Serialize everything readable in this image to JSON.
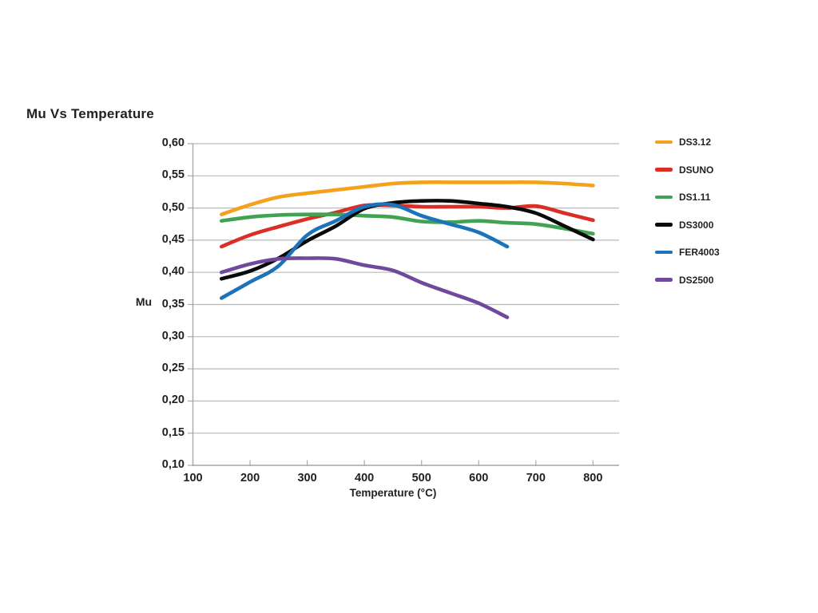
{
  "chart": {
    "title": "Mu Vs Temperature",
    "ylabel": "Mu",
    "xlabel": "Temperature (°C)"
  },
  "chart_data": {
    "type": "line",
    "title": "Mu Vs Temperature",
    "xlabel": "Temperature (°C)",
    "ylabel": "Mu",
    "xlim": [
      100,
      845
    ],
    "ylim": [
      0.1,
      0.6
    ],
    "grid": "horizontal-only",
    "legend_position": "right-outside",
    "x_ticks": [
      {
        "value": 100,
        "label": "100"
      },
      {
        "value": 200,
        "label": "200"
      },
      {
        "value": 300,
        "label": "300"
      },
      {
        "value": 400,
        "label": "400"
      },
      {
        "value": 500,
        "label": "500"
      },
      {
        "value": 600,
        "label": "600"
      },
      {
        "value": 700,
        "label": "700"
      },
      {
        "value": 800,
        "label": "800"
      }
    ],
    "y_ticks": [
      {
        "value": 0.6,
        "label": "0,60"
      },
      {
        "value": 0.55,
        "label": "0,55"
      },
      {
        "value": 0.5,
        "label": "0,50"
      },
      {
        "value": 0.45,
        "label": "0,45"
      },
      {
        "value": 0.4,
        "label": "0,40"
      },
      {
        "value": 0.35,
        "label": "0,35"
      },
      {
        "value": 0.3,
        "label": "0,30"
      },
      {
        "value": 0.25,
        "label": "0,25"
      },
      {
        "value": 0.2,
        "label": "0,20"
      },
      {
        "value": 0.15,
        "label": "0,15"
      },
      {
        "value": 0.1,
        "label": "0,10"
      }
    ],
    "series": [
      {
        "name": "DS3.12",
        "color": "#F2A21C",
        "x": [
          150,
          200,
          250,
          300,
          350,
          400,
          450,
          500,
          550,
          600,
          650,
          700,
          750,
          800
        ],
        "y": [
          0.49,
          0.505,
          0.517,
          0.523,
          0.528,
          0.533,
          0.538,
          0.54,
          0.54,
          0.54,
          0.54,
          0.54,
          0.538,
          0.535
        ]
      },
      {
        "name": "DSUNO",
        "color": "#DA2E27",
        "x": [
          150,
          200,
          250,
          300,
          350,
          400,
          450,
          500,
          550,
          600,
          650,
          700,
          750,
          800
        ],
        "y": [
          0.44,
          0.458,
          0.471,
          0.483,
          0.493,
          0.504,
          0.504,
          0.502,
          0.502,
          0.502,
          0.5,
          0.503,
          0.492,
          0.481
        ]
      },
      {
        "name": "DS1.11",
        "color": "#41A352",
        "x": [
          150,
          200,
          250,
          300,
          350,
          400,
          450,
          500,
          550,
          600,
          650,
          700,
          750,
          800
        ],
        "y": [
          0.48,
          0.486,
          0.489,
          0.49,
          0.49,
          0.488,
          0.486,
          0.479,
          0.478,
          0.48,
          0.477,
          0.475,
          0.468,
          0.46
        ]
      },
      {
        "name": "DS3000",
        "color": "#0A0A0A",
        "x": [
          150,
          200,
          250,
          300,
          350,
          400,
          450,
          500,
          550,
          600,
          650,
          700,
          750,
          800
        ],
        "y": [
          0.39,
          0.402,
          0.422,
          0.449,
          0.472,
          0.499,
          0.508,
          0.511,
          0.511,
          0.507,
          0.502,
          0.492,
          0.472,
          0.451
        ]
      },
      {
        "name": "FER4003",
        "color": "#1C73B9",
        "x": [
          150,
          200,
          250,
          300,
          350,
          400,
          450,
          500,
          550,
          600,
          650
        ],
        "y": [
          0.36,
          0.385,
          0.41,
          0.458,
          0.48,
          0.502,
          0.505,
          0.488,
          0.475,
          0.462,
          0.44
        ]
      },
      {
        "name": "DS2500",
        "color": "#6F4A9C",
        "x": [
          150,
          200,
          250,
          300,
          350,
          400,
          450,
          500,
          550,
          600,
          650
        ],
        "y": [
          0.4,
          0.413,
          0.421,
          0.422,
          0.421,
          0.411,
          0.403,
          0.384,
          0.368,
          0.352,
          0.33
        ]
      }
    ]
  },
  "colors": {
    "grid": "#b9babc",
    "axis": "#a8aaac",
    "text": "#231f20"
  }
}
